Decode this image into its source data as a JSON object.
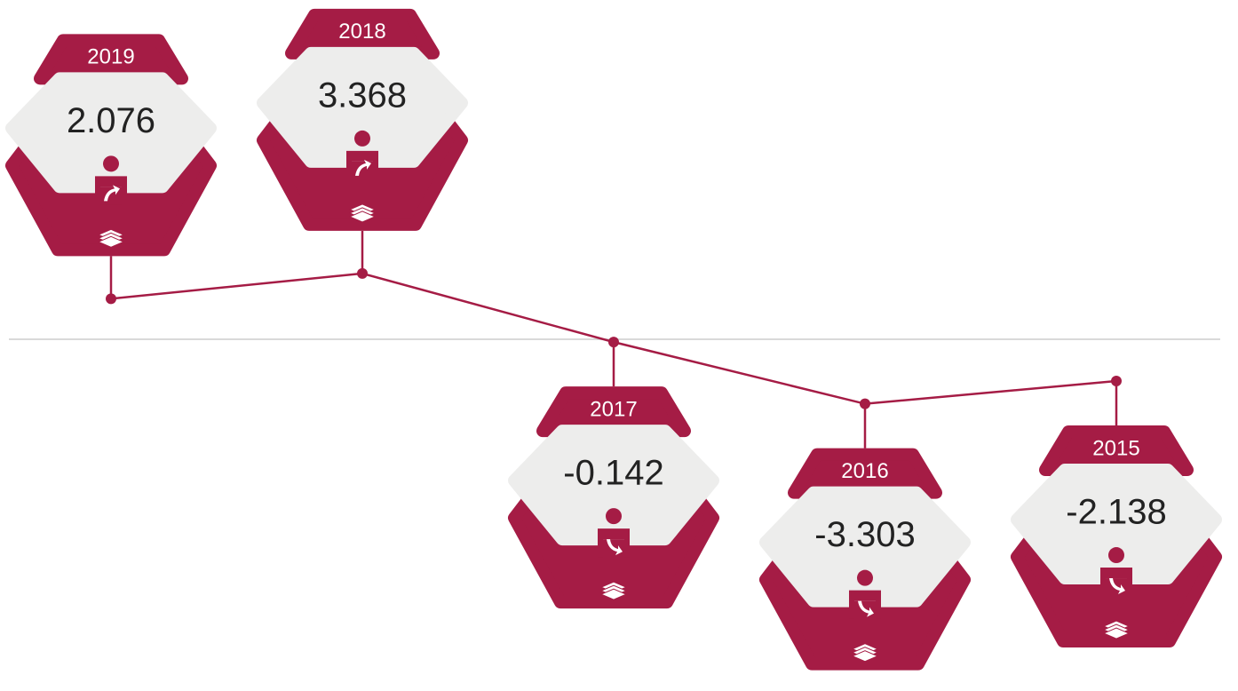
{
  "chart_data": {
    "type": "line",
    "categories": [
      "2019",
      "2018",
      "2017",
      "2016",
      "2015"
    ],
    "values": [
      2.076,
      3.368,
      -0.142,
      -3.303,
      -2.138
    ],
    "color": "#a51c45"
  }
}
